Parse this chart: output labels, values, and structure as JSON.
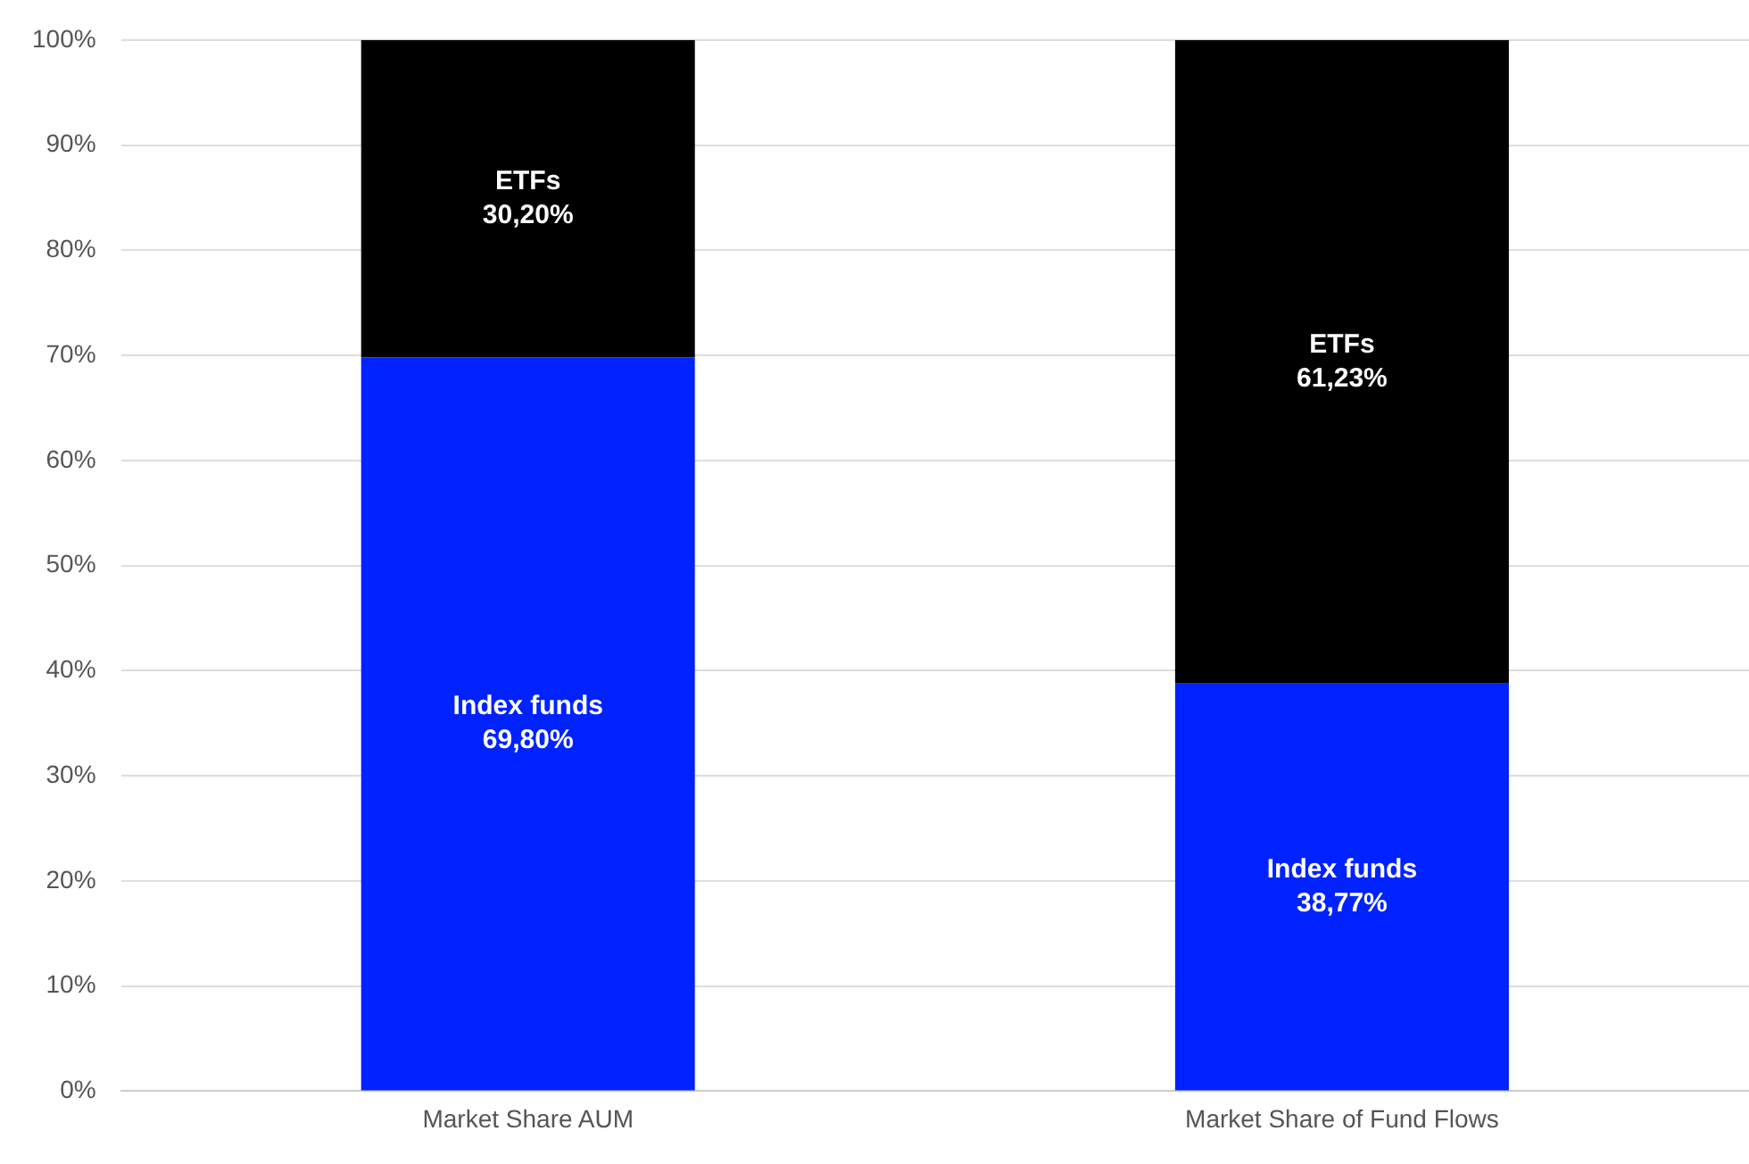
{
  "chart_data": {
    "type": "bar",
    "stacked": true,
    "categories": [
      "Market Share AUM",
      "Market Share of Fund Flows"
    ],
    "series": [
      {
        "name": "Index funds",
        "color": "#0022ff",
        "values": [
          69.8,
          38.77
        ],
        "value_labels": [
          "69,80%",
          "38,77%"
        ]
      },
      {
        "name": "ETFs",
        "color": "#000000",
        "values": [
          30.2,
          61.23
        ],
        "value_labels": [
          "30,20%",
          "61,23%"
        ]
      }
    ],
    "ylim": [
      0,
      100
    ],
    "yticks": [
      {
        "value": 0,
        "label": "0%"
      },
      {
        "value": 10,
        "label": "10%"
      },
      {
        "value": 20,
        "label": "20%"
      },
      {
        "value": 30,
        "label": "30%"
      },
      {
        "value": 40,
        "label": "40%"
      },
      {
        "value": 50,
        "label": "50%"
      },
      {
        "value": 60,
        "label": "60%"
      },
      {
        "value": 70,
        "label": "70%"
      },
      {
        "value": 80,
        "label": "80%"
      },
      {
        "value": 90,
        "label": "90%"
      },
      {
        "value": 100,
        "label": "100%"
      }
    ],
    "grid": "y",
    "legend": false
  }
}
